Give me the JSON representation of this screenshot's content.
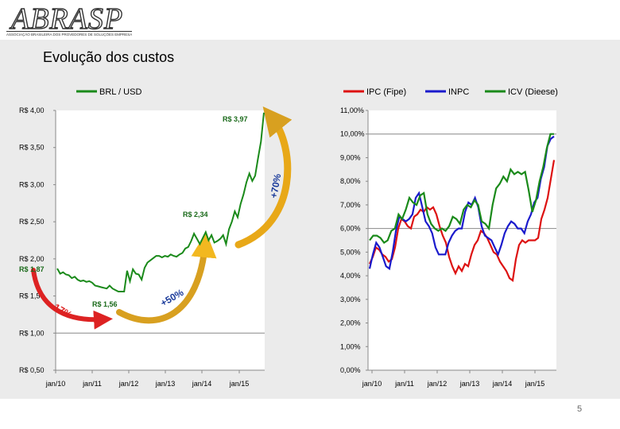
{
  "logo": {
    "text": "ABRASP",
    "subtitle": "ASSOCIAÇÃO BRASILEIRA DOS PROVEDORES DE SOLUÇÕES EMPRESARIAIS"
  },
  "slide": {
    "title": "Evolução dos custos",
    "page_number": "5"
  },
  "colors": {
    "green": "#1a8a1a",
    "red": "#dd1111",
    "blue": "#1a1acc",
    "arrow_yellow": "#f2b820",
    "arrow_red": "#dd2222",
    "arrow_blue": "#1a3a9a"
  },
  "chart_data": [
    {
      "type": "line",
      "x_ticks": [
        "jan/10",
        "jan/11",
        "jan/12",
        "jan/13",
        "jan/14",
        "jan/15"
      ],
      "y_ticks": [
        "R$ 0,50",
        "R$ 1,00",
        "R$ 1,50",
        "R$ 2,00",
        "R$ 2,50",
        "R$ 3,00",
        "R$ 3,50",
        "R$ 4,00"
      ],
      "ylim": [
        0.5,
        4.0
      ],
      "series": [
        {
          "name": "BRL / USD",
          "color": "#1a8a1a",
          "values": [
            1.87,
            1.8,
            1.82,
            1.79,
            1.78,
            1.74,
            1.76,
            1.72,
            1.7,
            1.71,
            1.69,
            1.7,
            1.68,
            1.64,
            1.63,
            1.62,
            1.61,
            1.6,
            1.64,
            1.6,
            1.58,
            1.56,
            1.56,
            1.56,
            1.84,
            1.7,
            1.86,
            1.8,
            1.79,
            1.72,
            1.88,
            1.95,
            1.98,
            2.01,
            2.04,
            2.04,
            2.02,
            2.04,
            2.03,
            2.06,
            2.04,
            2.03,
            2.06,
            2.08,
            2.14,
            2.16,
            2.24,
            2.34,
            2.27,
            2.2,
            2.28,
            2.36,
            2.25,
            2.32,
            2.22,
            2.24,
            2.27,
            2.32,
            2.2,
            2.4,
            2.5,
            2.64,
            2.56,
            2.74,
            2.87,
            3.03,
            3.15,
            3.05,
            3.12,
            3.36,
            3.58,
            3.97
          ]
        }
      ],
      "annotations": [
        "R$ 3,97",
        "R$ 2,34",
        "R$ 1,56",
        "R$ 1,87",
        "-17%",
        "+50%",
        "+70%"
      ]
    },
    {
      "type": "line",
      "x_ticks": [
        "jan/10",
        "jan/11",
        "jan/12",
        "jan/13",
        "jan/14",
        "jan/15"
      ],
      "y_ticks": [
        "0,00%",
        "1,00%",
        "2,00%",
        "3,00%",
        "4,00%",
        "5,00%",
        "6,00%",
        "7,00%",
        "8,00%",
        "9,00%",
        "10,00%",
        "11,00%"
      ],
      "ylim": [
        0,
        11
      ],
      "series": [
        {
          "name": "IPC (Fipe)",
          "color": "#dd1111",
          "values": [
            4.5,
            4.8,
            5.2,
            5.1,
            4.9,
            4.8,
            4.6,
            4.7,
            5.2,
            6.0,
            6.4,
            6.3,
            6.1,
            6.0,
            6.5,
            6.6,
            6.8,
            6.7,
            6.9,
            6.8,
            6.9,
            6.6,
            6.1,
            5.7,
            5.4,
            4.8,
            4.4,
            4.1,
            4.4,
            4.2,
            4.5,
            4.4,
            4.9,
            5.3,
            5.5,
            5.9,
            5.8,
            5.6,
            5.3,
            5.0,
            4.9,
            4.6,
            4.4,
            4.2,
            3.9,
            3.8,
            4.7,
            5.3,
            5.5,
            5.4,
            5.5,
            5.5,
            5.5,
            5.6,
            6.4,
            6.8,
            7.3,
            8.1,
            8.9
          ]
        },
        {
          "name": "INPC",
          "color": "#1a1acc",
          "values": [
            4.3,
            4.9,
            5.4,
            5.2,
            4.8,
            4.4,
            4.3,
            5.0,
            5.9,
            6.5,
            6.4,
            6.3,
            6.4,
            6.6,
            7.3,
            7.5,
            6.9,
            6.3,
            6.1,
            5.8,
            5.2,
            4.9,
            4.9,
            4.9,
            5.4,
            5.7,
            5.9,
            6.0,
            6.0,
            6.7,
            7.1,
            7.0,
            7.3,
            6.9,
            6.1,
            5.7,
            5.6,
            5.5,
            5.2,
            4.9,
            5.3,
            5.8,
            6.1,
            6.3,
            6.2,
            6.0,
            6.0,
            5.8,
            6.3,
            6.6,
            7.1,
            7.3,
            8.1,
            8.6,
            9.5,
            9.8,
            9.9
          ]
        },
        {
          "name": "ICV (Dieese)",
          "color": "#1a8a1a",
          "values": [
            5.5,
            5.7,
            5.7,
            5.6,
            5.4,
            5.5,
            5.9,
            6.0,
            6.6,
            6.4,
            6.8,
            7.3,
            7.1,
            7.0,
            7.4,
            7.5,
            6.6,
            6.2,
            6.0,
            5.9,
            6.0,
            5.9,
            6.1,
            6.5,
            6.4,
            6.2,
            6.8,
            7.0,
            6.9,
            7.2,
            7.0,
            6.3,
            6.2,
            6.0,
            7.0,
            7.7,
            7.9,
            8.2,
            8.0,
            8.5,
            8.3,
            8.4,
            8.3,
            8.4,
            7.6,
            6.7,
            7.2,
            8.0,
            8.6,
            9.4,
            10.0,
            10.0
          ]
        }
      ]
    }
  ]
}
